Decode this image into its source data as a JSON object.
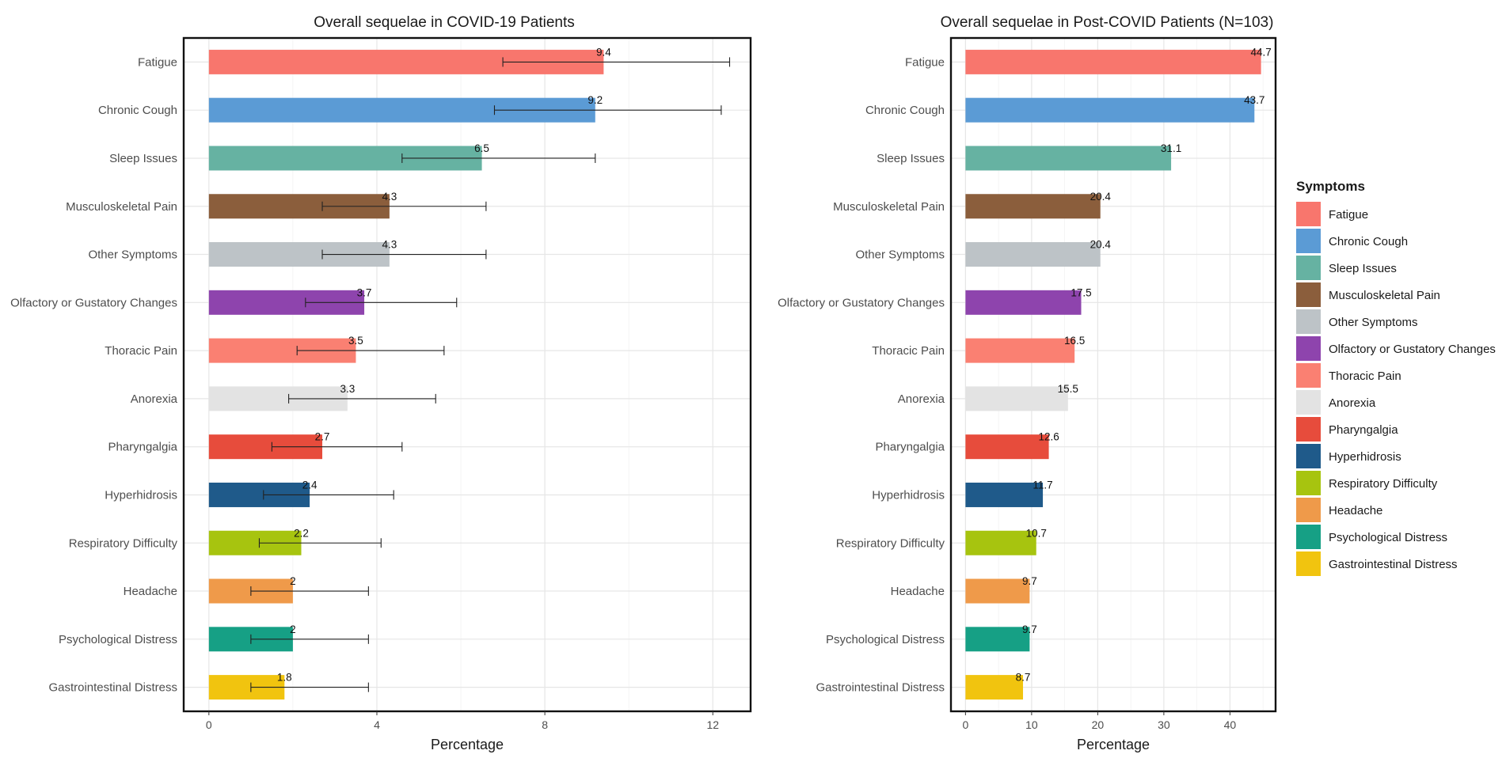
{
  "legend": {
    "title": "Symptoms",
    "items": [
      "Fatigue",
      "Chronic Cough",
      "Sleep Issues",
      "Musculoskeletal Pain",
      "Other Symptoms",
      "Olfactory or Gustatory Changes",
      "Thoracic Pain",
      "Anorexia",
      "Pharyngalgia",
      "Hyperhidrosis",
      "Respiratory Difficulty",
      "Headache",
      "Psychological Distress",
      "Gastrointestinal Distress"
    ],
    "colors": [
      "#F8766D",
      "#5B9BD5",
      "#66B2A2",
      "#8B5E3C",
      "#BDC3C7",
      "#8E44AD",
      "#FA8072",
      "#E3E3E3",
      "#E74C3C",
      "#1F5A8A",
      "#A7C40F",
      "#EF9A4A",
      "#16A085",
      "#F1C40F"
    ]
  },
  "chart_data": [
    {
      "type": "bar",
      "orientation": "horizontal",
      "title": "Overall sequelae in COVID-19 Patients",
      "xlabel": "Percentage",
      "ylabel": "",
      "xlim": [
        -0.6,
        12.9
      ],
      "xticks": [
        0,
        4,
        8,
        12
      ],
      "xtick_labels": [
        "0",
        "4",
        "8",
        "12"
      ],
      "categories": [
        "Fatigue",
        "Chronic Cough",
        "Sleep Issues",
        "Musculoskeletal Pain",
        "Other Symptoms",
        "Olfactory or Gustatory Changes",
        "Thoracic Pain",
        "Anorexia",
        "Pharyngalgia",
        "Hyperhidrosis",
        "Respiratory Difficulty",
        "Headache",
        "Psychological Distress",
        "Gastrointestinal Distress"
      ],
      "values": [
        9.4,
        9.2,
        6.5,
        4.3,
        4.3,
        3.7,
        3.5,
        3.3,
        2.7,
        2.4,
        2.2,
        2,
        2,
        1.8
      ],
      "value_labels": [
        "9.4",
        "9.2",
        "6.5",
        "4.3",
        "4.3",
        "3.7",
        "3.5",
        "3.3",
        "2.7",
        "2.4",
        "2.2",
        "2",
        "2",
        "1.8"
      ],
      "error_low": [
        7.0,
        6.8,
        4.6,
        2.7,
        2.7,
        2.3,
        2.1,
        1.9,
        1.5,
        1.3,
        1.2,
        1.0,
        1.0,
        1.0
      ],
      "error_high": [
        12.4,
        12.2,
        9.2,
        6.6,
        6.6,
        5.9,
        5.6,
        5.4,
        4.6,
        4.4,
        4.1,
        3.8,
        3.8,
        3.8
      ]
    },
    {
      "type": "bar",
      "orientation": "horizontal",
      "title": "Overall sequelae in Post-COVID Patients (N=103)",
      "xlabel": "Percentage",
      "ylabel": "",
      "xlim": [
        -2.2,
        46.9
      ],
      "xticks": [
        0,
        10,
        20,
        30,
        40
      ],
      "xtick_labels": [
        "0",
        "10",
        "20",
        "30",
        "40"
      ],
      "categories": [
        "Fatigue",
        "Chronic Cough",
        "Sleep Issues",
        "Musculoskeletal Pain",
        "Other Symptoms",
        "Olfactory or Gustatory Changes",
        "Thoracic Pain",
        "Anorexia",
        "Pharyngalgia",
        "Hyperhidrosis",
        "Respiratory Difficulty",
        "Headache",
        "Psychological Distress",
        "Gastrointestinal Distress"
      ],
      "values": [
        44.7,
        43.7,
        31.1,
        20.4,
        20.4,
        17.5,
        16.5,
        15.5,
        12.6,
        11.7,
        10.7,
        9.7,
        9.7,
        8.7
      ],
      "value_labels": [
        "44.7",
        "43.7",
        "31.1",
        "20.4",
        "20.4",
        "17.5",
        "16.5",
        "15.5",
        "12.6",
        "11.7",
        "10.7",
        "9.7",
        "9.7",
        "8.7"
      ]
    }
  ]
}
